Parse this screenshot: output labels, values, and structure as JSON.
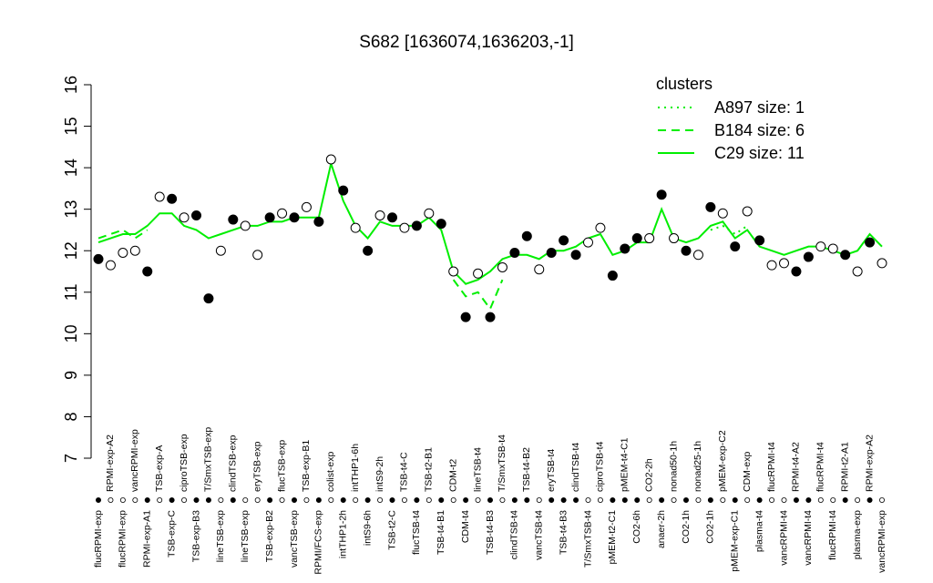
{
  "chart_data": {
    "type": "scatter",
    "title": "S682 [1636074,1636203,-1]",
    "categories": [
      "flucRPMI-exp",
      "RPMI-exp-A2",
      "flucRPMI-exp",
      "vancRPMI-exp",
      "RPMI-exp-A1",
      "TSB-exp-A",
      "TSB-exp-C",
      "ciproTSB-exp",
      "TSB-exp-B3",
      "T/SmxTSB-exp",
      "lineTSB-exp",
      "clindTSB-exp",
      "lineTSB-exp",
      "eryTSB-exp",
      "TSB-exp-B2",
      "flucTSB-exp",
      "vancTSB-exp",
      "TSB-exp-B1",
      "RPMI/FCS-exp",
      "colist-exp",
      "intTHP1-2h",
      "intTHP1-6h",
      "intS9-6h",
      "intS9-2h",
      "TSB-t2-C",
      "TSB-t4-C",
      "flucTSB-t4",
      "TSB-t2-B1",
      "TSB-t4-B1",
      "CDM-t2",
      "CDM-t4",
      "lineTSB-t4",
      "TSB-t4-B3",
      "T/SmxTSB-t4",
      "clindTSB-t4",
      "TSB-t4-B2",
      "vancTSB-t4",
      "eryTSB-t4",
      "TSB-t4-B3",
      "clindTSB-t4",
      "T/SmxTSB-t4",
      "ciproTSB-t4",
      "pMEM-t2-C1",
      "pMEM-t4-C1",
      "CO2-6h",
      "CO2-2h",
      "anaer-2h",
      "nonad50-1h",
      "CO2-1h",
      "nonad25-1h",
      "CO2-1h",
      "pMEM-exp-C2",
      "pMEM-exp-C1",
      "CDM-exp",
      "plasma-t4",
      "flucRPMI-t4",
      "vancRPMI-t4",
      "RPMI-t4-A2",
      "vancRPMI-t4",
      "flucRPMI-t4",
      "flucRPMI-t4",
      "RPMI-t2-A1",
      "plasma-exp",
      "RPMI-exp-A2",
      "vancRPMI-exp"
    ],
    "values": [
      11.8,
      11.65,
      11.95,
      12.0,
      11.5,
      13.3,
      13.25,
      12.8,
      12.85,
      10.85,
      12.0,
      12.75,
      12.6,
      11.9,
      12.8,
      12.9,
      12.8,
      13.05,
      12.7,
      14.2,
      13.45,
      12.55,
      12.0,
      12.85,
      12.8,
      12.55,
      12.6,
      12.9,
      12.65,
      11.5,
      10.4,
      11.45,
      10.4,
      11.6,
      11.95,
      12.35,
      11.55,
      11.95,
      12.25,
      11.9,
      12.2,
      12.55,
      11.4,
      12.05,
      12.3,
      12.3,
      13.35,
      12.3,
      12.0,
      11.9,
      13.05,
      12.9,
      12.1,
      12.95,
      12.25,
      11.65,
      11.7,
      11.5,
      11.85,
      12.1,
      12.05,
      11.9,
      11.5,
      12.2,
      11.7
    ],
    "filled": [
      true,
      false,
      false,
      false,
      true,
      false,
      true,
      false,
      true,
      true,
      false,
      true,
      false,
      false,
      true,
      false,
      true,
      false,
      true,
      false,
      true,
      false,
      true,
      false,
      true,
      false,
      true,
      false,
      true,
      false,
      true,
      false,
      true,
      false,
      true,
      true,
      false,
      true,
      true,
      true,
      false,
      false,
      true,
      true,
      true,
      false,
      true,
      false,
      true,
      false,
      true,
      false,
      true,
      false,
      true,
      false,
      false,
      true,
      true,
      false,
      false,
      true,
      false,
      true,
      false
    ],
    "ylim": [
      7,
      16
    ],
    "yticks": [
      7,
      8,
      9,
      10,
      11,
      12,
      13,
      14,
      15,
      16
    ],
    "legend_title": "clusters",
    "legend": "topright",
    "series": [
      {
        "name": "A897 size: 1",
        "color": "#00ee00",
        "dash": "dotted",
        "values": [
          null,
          null,
          null,
          null,
          null,
          null,
          null,
          null,
          null,
          null,
          null,
          null,
          null,
          null,
          null,
          null,
          null,
          null,
          null,
          null,
          null,
          null,
          null,
          null,
          null,
          null,
          null,
          null,
          null,
          null,
          null,
          null,
          null,
          null,
          null,
          null,
          null,
          null,
          null,
          null,
          null,
          null,
          null,
          null,
          null,
          null,
          null,
          null,
          null,
          null,
          12.5,
          12.6,
          12.4,
          12.6,
          null,
          null,
          null,
          null,
          null,
          null,
          null,
          null,
          null,
          null,
          null
        ]
      },
      {
        "name": "B184 size: 6",
        "color": "#00ee00",
        "dash": "dashed",
        "values": [
          12.3,
          12.4,
          12.5,
          12.3,
          12.5,
          null,
          null,
          null,
          null,
          null,
          null,
          null,
          null,
          null,
          null,
          null,
          null,
          null,
          null,
          null,
          null,
          null,
          null,
          null,
          null,
          null,
          null,
          null,
          null,
          11.3,
          10.9,
          11.0,
          10.6,
          11.3,
          null,
          null,
          null,
          null,
          null,
          null,
          null,
          null,
          null,
          null,
          null,
          null,
          null,
          null,
          null,
          null,
          null,
          null,
          null,
          null,
          null,
          null,
          null,
          null,
          null,
          null,
          null,
          null,
          null,
          null,
          null
        ]
      },
      {
        "name": "C29 size: 11",
        "color": "#00ee00",
        "dash": "solid",
        "values": [
          12.2,
          12.3,
          12.4,
          12.4,
          12.6,
          12.9,
          12.9,
          12.6,
          12.5,
          12.3,
          12.4,
          12.5,
          12.6,
          12.6,
          12.7,
          12.7,
          12.8,
          12.8,
          12.8,
          14.1,
          13.2,
          12.6,
          12.3,
          12.7,
          12.6,
          12.6,
          12.6,
          12.8,
          12.5,
          11.5,
          11.2,
          11.3,
          11.5,
          11.8,
          11.9,
          11.9,
          11.8,
          12.0,
          12.0,
          12.1,
          12.3,
          12.4,
          11.9,
          12.0,
          12.2,
          12.2,
          13.0,
          12.3,
          12.2,
          12.3,
          12.6,
          12.7,
          12.3,
          12.5,
          12.1,
          12.0,
          11.9,
          12.0,
          12.1,
          12.1,
          12.0,
          11.9,
          12.0,
          12.4,
          12.1
        ]
      }
    ]
  }
}
